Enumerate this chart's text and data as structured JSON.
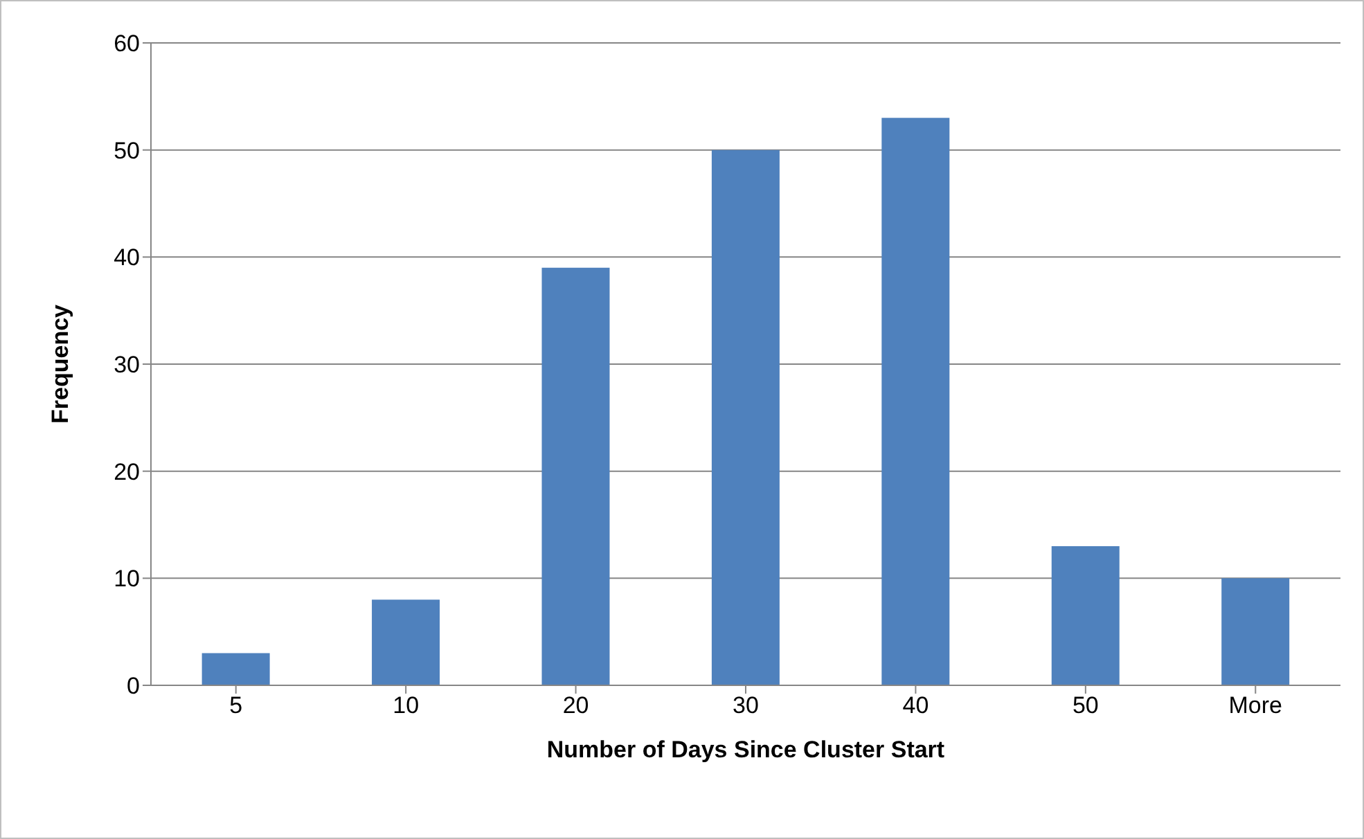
{
  "chart_data": {
    "type": "bar",
    "xlabel": "Number of Days Since Cluster Start",
    "ylabel": "Frequency",
    "categories": [
      "5",
      "10",
      "20",
      "30",
      "40",
      "50",
      "More"
    ],
    "values": [
      3,
      8,
      39,
      50,
      53,
      13,
      10
    ],
    "color": "#4f81bd",
    "ylim": [
      0,
      60
    ],
    "yticks": [
      0,
      10,
      20,
      30,
      40,
      50,
      60
    ],
    "grid": "y",
    "legend": false
  }
}
